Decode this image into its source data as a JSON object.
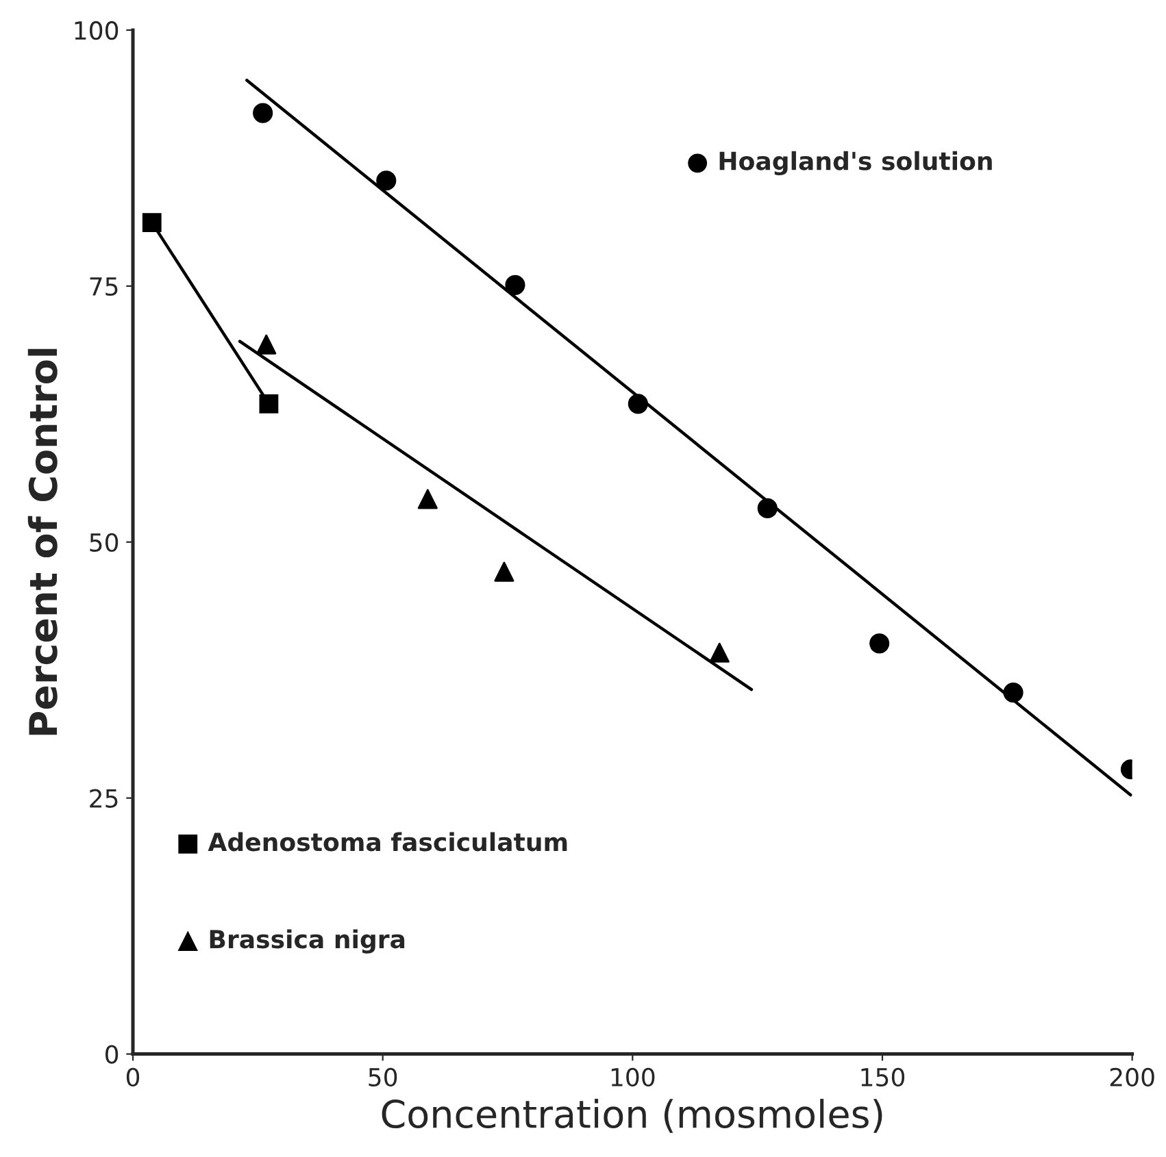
{
  "chart_data": {
    "type": "scatter",
    "xlabel": "Concentration (mosmoles)",
    "ylabel": "Percent of Control",
    "xlim": [
      0,
      200
    ],
    "xticks": [
      0,
      50,
      100,
      150,
      200
    ],
    "ylim": [
      0,
      100
    ],
    "yticks": [
      0,
      25,
      50,
      75,
      100
    ],
    "grid": false,
    "legend": "center",
    "series": [
      {
        "name": "Hoagland's solution",
        "marker": "circle",
        "color": "#000000",
        "x": [
          26.0,
          50.7,
          76.5,
          101.1,
          127.0,
          149.4,
          176.2,
          199.7
        ],
        "values": [
          91.9,
          85.3,
          75.1,
          63.5,
          53.3,
          40.1,
          35.3,
          27.8
        ]
      },
      {
        "type": "line",
        "marker": "none",
        "line_style": "solid",
        "color": "#000000",
        "x": [
          22.8,
          199.7
        ],
        "values": [
          95.1,
          25.3
        ]
      },
      {
        "name": "Adenostoma fasciculatum",
        "type": "line",
        "marker": "square",
        "line_style": "solid",
        "color": "#000000",
        "x": [
          3.8,
          27.2
        ],
        "values": [
          81.2,
          63.5
        ]
      },
      {
        "name": "Brassica nigra",
        "marker": "triangle",
        "color": "#000000",
        "x": [
          26.7,
          59.0,
          74.3,
          117.4
        ],
        "values": [
          69.3,
          54.2,
          47.1,
          39.2
        ]
      },
      {
        "type": "line",
        "marker": "none",
        "line_style": "solid",
        "color": "#000000",
        "x": [
          21.4,
          123.8
        ],
        "values": [
          69.6,
          35.6
        ]
      }
    ]
  }
}
